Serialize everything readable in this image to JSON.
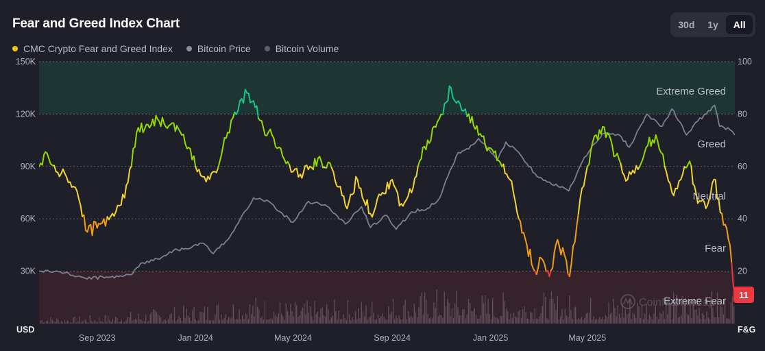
{
  "title": "Fear and Greed Index Chart",
  "range_buttons": [
    {
      "label": "30d",
      "active": false
    },
    {
      "label": "1y",
      "active": false
    },
    {
      "label": "All",
      "active": true
    }
  ],
  "legend": [
    {
      "label": "CMC Crypto Fear and Greed Index",
      "color": "#f0c419"
    },
    {
      "label": "Bitcoin Price",
      "color": "#8a8f9e"
    },
    {
      "label": "Bitcoin Volume",
      "color": "#5c606e"
    }
  ],
  "watermark": "CoinMarketCap",
  "current_badge": {
    "value": "11",
    "color": "#ea3943"
  },
  "chart_data": {
    "type": "line",
    "left_axis": {
      "unit_label": "USD",
      "ticks": [
        "30K",
        "60K",
        "90K",
        "120K",
        "150K"
      ],
      "range": [
        0,
        150000
      ]
    },
    "right_axis": {
      "unit_label": "F&G",
      "ticks": [
        "20",
        "40",
        "60",
        "80",
        "100"
      ],
      "range": [
        0,
        100
      ]
    },
    "x_range": [
      "2023-06-21",
      "2025-10-31"
    ],
    "x_ticks": [
      {
        "label": "Sep 2023",
        "date": "2023-09-01"
      },
      {
        "label": "Jan 2024",
        "date": "2024-01-01"
      },
      {
        "label": "May 2024",
        "date": "2024-05-01"
      },
      {
        "label": "Sep 2024",
        "date": "2024-09-01"
      },
      {
        "label": "Jan 2025",
        "date": "2025-01-01"
      },
      {
        "label": "May 2025",
        "date": "2025-05-01"
      }
    ],
    "zones": [
      {
        "label": "Extreme Greed",
        "from": 80,
        "to": 100,
        "color": "#16c784"
      },
      {
        "label": "Greed",
        "from": 60,
        "to": 80,
        "color": "#93d900"
      },
      {
        "label": "Neutral",
        "from": 40,
        "to": 60,
        "color": "#f3d42f"
      },
      {
        "label": "Fear",
        "from": 20,
        "to": 40,
        "color": "#f39c12"
      },
      {
        "label": "Extreme Fear",
        "from": 0,
        "to": 20,
        "color": "#ea3943"
      }
    ],
    "grid": true,
    "series": [
      {
        "name": "CMC Crypto Fear and Greed Index",
        "axis": "right",
        "x": [
          "2023-06-21",
          "2023-07-01",
          "2023-07-12",
          "2023-07-25",
          "2023-08-05",
          "2023-08-20",
          "2023-09-05",
          "2023-09-20",
          "2023-10-05",
          "2023-10-20",
          "2023-11-01",
          "2023-11-15",
          "2023-12-01",
          "2023-12-15",
          "2024-01-01",
          "2024-01-12",
          "2024-01-25",
          "2024-02-10",
          "2024-02-25",
          "2024-03-05",
          "2024-03-13",
          "2024-03-25",
          "2024-04-05",
          "2024-04-18",
          "2024-05-01",
          "2024-05-10",
          "2024-05-22",
          "2024-06-05",
          "2024-06-20",
          "2024-07-05",
          "2024-07-20",
          "2024-08-05",
          "2024-08-20",
          "2024-09-01",
          "2024-09-10",
          "2024-09-25",
          "2024-10-05",
          "2024-10-15",
          "2024-10-25",
          "2024-11-05",
          "2024-11-13",
          "2024-11-22",
          "2024-12-05",
          "2024-12-17",
          "2025-01-01",
          "2025-01-15",
          "2025-01-25",
          "2025-02-05",
          "2025-02-15",
          "2025-02-25",
          "2025-03-05",
          "2025-03-15",
          "2025-03-25",
          "2025-04-05",
          "2025-04-09",
          "2025-04-20",
          "2025-05-01",
          "2025-05-12",
          "2025-05-22",
          "2025-06-05",
          "2025-06-20",
          "2025-07-05",
          "2025-07-15",
          "2025-07-25",
          "2025-08-05",
          "2025-08-14",
          "2025-08-25",
          "2025-09-05",
          "2025-09-15",
          "2025-09-25",
          "2025-10-05",
          "2025-10-15",
          "2025-10-25",
          "2025-10-31"
        ],
        "values": [
          60,
          65,
          58,
          56,
          52,
          35,
          38,
          42,
          48,
          73,
          76,
          78,
          76,
          72,
          60,
          56,
          58,
          73,
          85,
          88,
          85,
          75,
          72,
          64,
          58,
          57,
          60,
          62,
          58,
          45,
          55,
          42,
          50,
          55,
          45,
          50,
          62,
          70,
          75,
          84,
          90,
          85,
          80,
          72,
          67,
          60,
          55,
          40,
          30,
          20,
          25,
          18,
          32,
          24,
          18,
          42,
          60,
          72,
          75,
          64,
          55,
          60,
          68,
          72,
          60,
          50,
          55,
          62,
          46,
          44,
          55,
          42,
          30,
          11
        ]
      },
      {
        "name": "Bitcoin Price",
        "axis": "left",
        "x": [
          "2023-06-21",
          "2023-07-15",
          "2023-08-17",
          "2023-09-15",
          "2023-10-15",
          "2023-10-25",
          "2023-11-15",
          "2023-12-05",
          "2023-12-20",
          "2024-01-11",
          "2024-01-23",
          "2024-02-10",
          "2024-02-28",
          "2024-03-13",
          "2024-04-01",
          "2024-04-15",
          "2024-05-01",
          "2024-05-20",
          "2024-06-10",
          "2024-07-05",
          "2024-07-25",
          "2024-08-05",
          "2024-08-25",
          "2024-09-06",
          "2024-09-25",
          "2024-10-15",
          "2024-10-30",
          "2024-11-12",
          "2024-11-22",
          "2024-12-05",
          "2024-12-17",
          "2025-01-10",
          "2025-01-20",
          "2025-02-05",
          "2025-02-25",
          "2025-03-10",
          "2025-04-08",
          "2025-04-25",
          "2025-05-10",
          "2025-05-22",
          "2025-06-10",
          "2025-06-22",
          "2025-07-14",
          "2025-08-02",
          "2025-08-14",
          "2025-09-01",
          "2025-09-15",
          "2025-10-06",
          "2025-10-12",
          "2025-10-25",
          "2025-10-31"
        ],
        "values": [
          30000,
          29800,
          26000,
          26500,
          28500,
          34500,
          37000,
          42000,
          43000,
          46000,
          40000,
          48000,
          62000,
          72000,
          70000,
          64000,
          58000,
          70000,
          68000,
          57000,
          67000,
          55000,
          62000,
          54000,
          64000,
          66000,
          72000,
          88000,
          98000,
          100000,
          106000,
          94000,
          104000,
          98000,
          86000,
          82000,
          76000,
          93000,
          103000,
          109000,
          108000,
          101000,
          120000,
          113000,
          123000,
          108000,
          116000,
          125000,
          113000,
          111000,
          108000
        ]
      },
      {
        "name": "Bitcoin Volume",
        "axis": "volume",
        "x": [
          "2023-06-21",
          "2023-08-01",
          "2023-10-01",
          "2024-01-01",
          "2024-03-01",
          "2024-05-01",
          "2024-08-01",
          "2024-11-01",
          "2025-01-01",
          "2025-03-01",
          "2025-05-01",
          "2025-07-01",
          "2025-10-31"
        ],
        "values": [
          0.15,
          0.12,
          0.2,
          0.35,
          0.55,
          0.4,
          0.45,
          0.65,
          0.55,
          0.6,
          0.5,
          0.55,
          0.6
        ]
      }
    ]
  }
}
